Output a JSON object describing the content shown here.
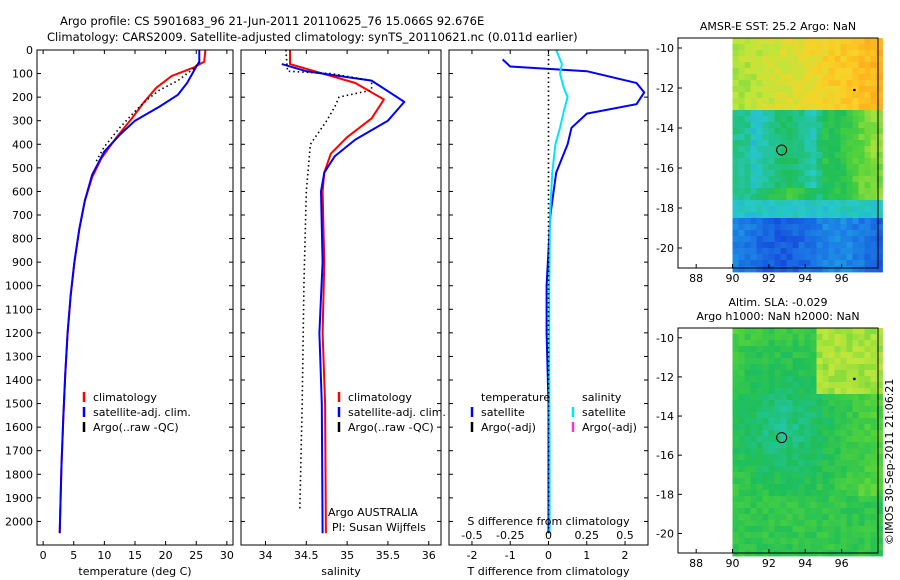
{
  "header": {
    "line1": "Argo profile: CS 5901683_96 21-Jun-2011 20110625_76 15.066S 92.676E",
    "line2": "Climatology: CARS2009. Satellite-adjusted climatology: synTS_20110621.nc (0.011d earlier)"
  },
  "credit": "©IMOS 30-Sep-2011 21:06:21",
  "colors": {
    "climatology": "#ff0000",
    "satellite": "#0000ff",
    "argo": "#000000",
    "sat_s_diff": "#00e5ff",
    "argo_s_adj": "#ff33cc"
  },
  "chart_data": [
    {
      "type": "line",
      "id": "temperature",
      "xlabel": "temperature (deg C)",
      "ylabel": "",
      "xlim": [
        -1,
        31
      ],
      "ylim": [
        2100,
        0
      ],
      "xticks": [
        "0",
        "5",
        "10",
        "15",
        "20",
        "25",
        "30"
      ],
      "yticks": [
        "0",
        "100",
        "200",
        "300",
        "400",
        "500",
        "600",
        "700",
        "800",
        "900",
        "1000",
        "1100",
        "1200",
        "1300",
        "1400",
        "1500",
        "1600",
        "1700",
        "1800",
        "1900",
        "2000"
      ],
      "legend": {
        "position": "lower-center",
        "entries": [
          "climatology",
          "satellite-adj. clim.",
          "Argo(..raw -QC)"
        ]
      },
      "series": [
        {
          "name": "climatology",
          "color": "#ff0000",
          "style": "solid",
          "points": [
            [
              26.5,
              0
            ],
            [
              26.3,
              50
            ],
            [
              24.5,
              75
            ],
            [
              21,
              110
            ],
            [
              18.5,
              160
            ],
            [
              16.5,
              220
            ],
            [
              14.5,
              290
            ],
            [
              12,
              370
            ],
            [
              9.5,
              460
            ],
            [
              8,
              540
            ],
            [
              6.8,
              640
            ],
            [
              5.9,
              760
            ],
            [
              5.1,
              900
            ],
            [
              4.5,
              1040
            ],
            [
              4,
              1200
            ],
            [
              3.6,
              1380
            ],
            [
              3.3,
              1560
            ],
            [
              3,
              1760
            ],
            [
              2.8,
              1950
            ],
            [
              2.7,
              2050
            ]
          ]
        },
        {
          "name": "satellite-adj. clim.",
          "color": "#0000ff",
          "style": "solid",
          "points": [
            [
              25.5,
              0
            ],
            [
              25.5,
              50
            ],
            [
              25,
              70
            ],
            [
              23.5,
              140
            ],
            [
              22,
              190
            ],
            [
              19,
              240
            ],
            [
              15,
              300
            ],
            [
              12.5,
              360
            ],
            [
              10,
              430
            ],
            [
              8,
              530
            ],
            [
              6.8,
              640
            ],
            [
              5.9,
              760
            ],
            [
              5.1,
              900
            ],
            [
              4.5,
              1040
            ],
            [
              4,
              1200
            ],
            [
              3.6,
              1380
            ],
            [
              3.3,
              1560
            ],
            [
              3,
              1760
            ],
            [
              2.8,
              1950
            ],
            [
              2.7,
              2050
            ]
          ]
        },
        {
          "name": "Argo(..raw -QC)",
          "color": "#000000",
          "style": "dotted",
          "points": [
            [
              25.6,
              50
            ],
            [
              24.5,
              80
            ],
            [
              22,
              130
            ],
            [
              19,
              170
            ],
            [
              17,
              210
            ],
            [
              15,
              260
            ],
            [
              12.5,
              330
            ],
            [
              10,
              410
            ],
            [
              8.5,
              480
            ]
          ]
        }
      ]
    },
    {
      "type": "line",
      "id": "salinity",
      "xlabel": "salinity",
      "ylabel": "",
      "xlim": [
        33.7,
        36.15
      ],
      "ylim": [
        2100,
        0
      ],
      "xticks": [
        "34",
        "34.5",
        "35",
        "35.5",
        "36"
      ],
      "legend": {
        "position": "lower-center",
        "entries": [
          "climatology",
          "satellite-adj. clim.",
          "Argo(..raw -QC)"
        ]
      },
      "annotation": [
        "Argo AUSTRALIA",
        "PI: Susan Wijffels"
      ],
      "series": [
        {
          "name": "climatology",
          "color": "#ff0000",
          "style": "solid",
          "points": [
            [
              34.3,
              0
            ],
            [
              34.3,
              60
            ],
            [
              34.6,
              90
            ],
            [
              35.1,
              140
            ],
            [
              35.45,
              210
            ],
            [
              35.3,
              290
            ],
            [
              35.0,
              370
            ],
            [
              34.8,
              440
            ],
            [
              34.72,
              520
            ],
            [
              34.7,
              600
            ],
            [
              34.72,
              900
            ],
            [
              34.7,
              1200
            ],
            [
              34.73,
              1500
            ],
            [
              34.74,
              2050
            ]
          ]
        },
        {
          "name": "satellite-adj. clim.",
          "color": "#0000ff",
          "style": "solid",
          "points": [
            [
              34.2,
              60
            ],
            [
              34.5,
              90
            ],
            [
              35.3,
              130
            ],
            [
              35.7,
              220
            ],
            [
              35.5,
              300
            ],
            [
              35.1,
              380
            ],
            [
              34.85,
              450
            ],
            [
              34.72,
              520
            ],
            [
              34.68,
              600
            ],
            [
              34.7,
              900
            ],
            [
              34.66,
              1200
            ],
            [
              34.69,
              1500
            ],
            [
              34.7,
              2050
            ]
          ]
        },
        {
          "name": "Argo(..raw -QC)",
          "color": "#000000",
          "style": "dotted",
          "points": [
            [
              34.25,
              0
            ],
            [
              34.27,
              90
            ],
            [
              34.8,
              100
            ],
            [
              35.3,
              130
            ],
            [
              35.3,
              170
            ],
            [
              34.9,
              200
            ],
            [
              34.85,
              240
            ],
            [
              34.75,
              300
            ],
            [
              34.55,
              400
            ],
            [
              34.5,
              600
            ],
            [
              34.47,
              1000
            ],
            [
              34.45,
              1500
            ],
            [
              34.42,
              1950
            ]
          ]
        }
      ]
    },
    {
      "type": "line",
      "id": "difference",
      "xlabel": "T difference from climatology",
      "xlabel2": "S difference from climatology",
      "xlim": [
        -2.6,
        2.6
      ],
      "xlim2": [
        -0.65,
        0.65
      ],
      "ylim": [
        2100,
        0
      ],
      "xticks": [
        "-2",
        "-1",
        "0",
        "1",
        "2"
      ],
      "xticks2": [
        "-0.5",
        "-0.25",
        "0",
        "0.25",
        "0.5"
      ],
      "legend": {
        "position": "lower-center",
        "columns": [
          [
            "temperature",
            "satellite",
            "Argo(-adj)"
          ],
          [
            "salinity",
            "satellite",
            "Argo(-adj)"
          ]
        ]
      },
      "series": [
        {
          "name": "satellite (T)",
          "color": "#0000ff",
          "style": "solid",
          "points": [
            [
              -1.2,
              40
            ],
            [
              -1.0,
              70
            ],
            [
              1.0,
              90
            ],
            [
              2.3,
              140
            ],
            [
              2.5,
              180
            ],
            [
              2.3,
              230
            ],
            [
              1.0,
              270
            ],
            [
              0.6,
              330
            ],
            [
              0.5,
              400
            ],
            [
              0.2,
              520
            ],
            [
              0.05,
              700
            ],
            [
              -0.05,
              1000
            ],
            [
              -0.05,
              1200
            ],
            [
              0,
              1500
            ],
            [
              0,
              2050
            ]
          ]
        },
        {
          "name": "satellite (S)",
          "color": "#00e5ff",
          "style": "solid",
          "points": [
            [
              0.2,
              0
            ],
            [
              0.35,
              60
            ],
            [
              0.3,
              100
            ],
            [
              0.4,
              160
            ],
            [
              0.5,
              200
            ],
            [
              0.4,
              260
            ],
            [
              0.3,
              330
            ],
            [
              0.18,
              400
            ],
            [
              0.1,
              520
            ],
            [
              0.04,
              700
            ],
            [
              0.02,
              1000
            ],
            [
              0.02,
              1400
            ],
            [
              0.03,
              1700
            ],
            [
              0.03,
              2050
            ]
          ]
        },
        {
          "name": "zero line",
          "color": "#000000",
          "style": "dotted",
          "points": [
            [
              0,
              0
            ],
            [
              0,
              2050
            ]
          ]
        }
      ]
    },
    {
      "type": "heatmap",
      "id": "sst-map",
      "title": "AMSR-E SST: 25.2  Argo: NaN",
      "xlim": [
        87,
        98
      ],
      "ylim": [
        -21,
        -9.5
      ],
      "xticks": [
        "88",
        "90",
        "92",
        "94",
        "96"
      ],
      "yticks": [
        "-10",
        "-12",
        "-14",
        "-16",
        "-18",
        "-20"
      ],
      "data_x_start": 90,
      "marker": [
        92.7,
        -15.1
      ]
    },
    {
      "type": "heatmap",
      "id": "sla-map",
      "title": [
        "Altim. SLA: -0.029",
        "Argo h1000: NaN h2000: NaN"
      ],
      "xlim": [
        87,
        98
      ],
      "ylim": [
        -21,
        -9.5
      ],
      "xticks": [
        "88",
        "90",
        "92",
        "94",
        "96"
      ],
      "yticks": [
        "-10",
        "-12",
        "-14",
        "-16",
        "-18",
        "-20"
      ],
      "data_x_start": 90,
      "marker": [
        92.7,
        -15.1
      ]
    }
  ]
}
